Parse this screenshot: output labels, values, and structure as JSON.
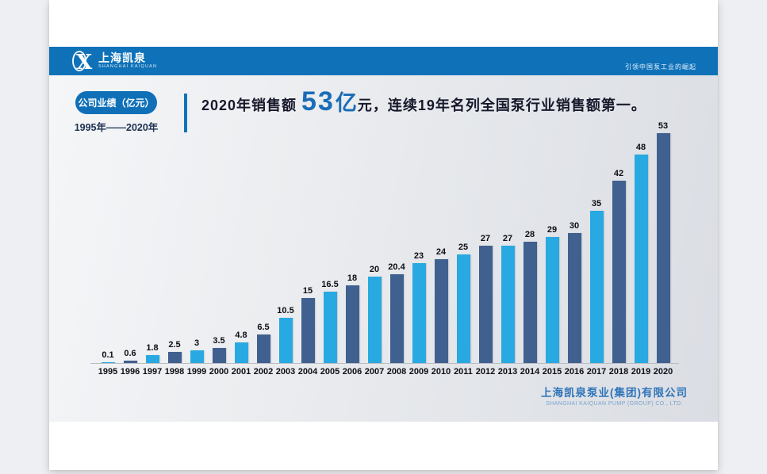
{
  "header": {
    "logo_cn": "上海凯泉",
    "logo_en": "SHANGHAI KAIQUAN",
    "slogan": "引领中国泵工业的崛起"
  },
  "title_block": {
    "pill_label": "公司业绩（亿元）",
    "date_range": "1995年——2020年",
    "headline_prefix": "2020年销售额",
    "headline_number": "53",
    "headline_unit": "亿",
    "headline_suffix": "元，连续19年名列全国泵行业销售额第一。"
  },
  "footer": {
    "company_cn": "上海凯泉泵业(集团)有限公司",
    "company_en": "SHANGHAI KAIQUAN PUMP (GROUP) CO., LTD."
  },
  "colors": {
    "header_blue": "#0f72b9",
    "pill_blue": "#0f70b8",
    "divider_blue": "#1373ba",
    "accent_blue": "#1a6cb7",
    "dark_text": "#17182a",
    "range_text": "#1c3050",
    "footer_blue": "#2e74b9",
    "footer_en_blue": "#7aa3cd"
  },
  "chart_data": {
    "type": "bar",
    "title": "公司业绩（亿元）1995年——2020年",
    "xlabel": "",
    "ylabel": "",
    "ylim": [
      0,
      55
    ],
    "grid": false,
    "legend": "none",
    "categories": [
      "1995",
      "1996",
      "1997",
      "1998",
      "1999",
      "2000",
      "2001",
      "2002",
      "2003",
      "2004",
      "2005",
      "2006",
      "2007",
      "2008",
      "2009",
      "2010",
      "2011",
      "2012",
      "2013",
      "2014",
      "2015",
      "2016",
      "2017",
      "2018",
      "2019",
      "2020"
    ],
    "values": [
      0.1,
      0.6,
      1.8,
      2.5,
      3,
      3.5,
      4.8,
      6.5,
      10.5,
      15,
      16.5,
      18,
      20,
      20.4,
      23,
      24,
      25,
      27,
      27,
      28,
      29,
      30,
      35,
      42,
      48,
      53
    ],
    "labels": [
      "0.1",
      "0.6",
      "1.8",
      "2.5",
      "3",
      "3.5",
      "4.8",
      "6.5",
      "10.5",
      "15",
      "16.5",
      "18",
      "20",
      "20.4",
      "23",
      "24",
      "25",
      "27",
      "27",
      "28",
      "29",
      "30",
      "35",
      "42",
      "48",
      "53"
    ],
    "bar_color_odd_year": "#29a9e1",
    "bar_color_even_year": "#40608f"
  }
}
